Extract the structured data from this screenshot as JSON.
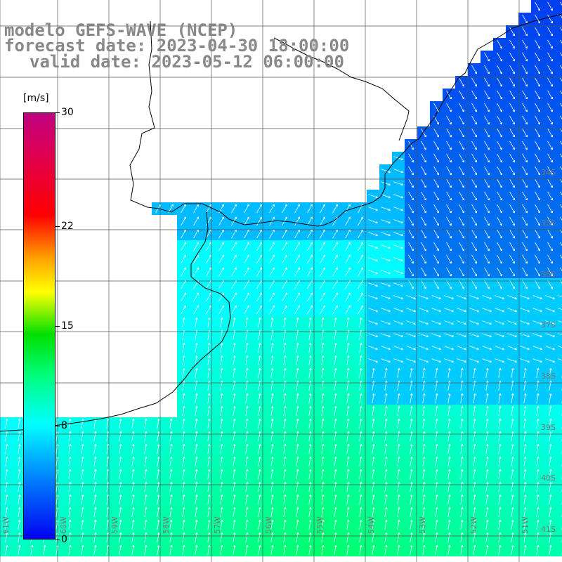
{
  "title": {
    "model": "modelo GEFS-WAVE (NCEP)",
    "forecast": "forecast date: 2023-04-30 18:00:00",
    "valid": "valid date: 2023-05-12 06:00:00"
  },
  "colorbar": {
    "unit": "[m/s]",
    "ticks": [
      {
        "label": "30",
        "value": 30
      },
      {
        "label": "22",
        "value": 22
      },
      {
        "label": "15",
        "value": 15
      },
      {
        "label": "8",
        "value": 8
      },
      {
        "label": "0",
        "value": 0
      }
    ],
    "range": [
      0,
      30
    ]
  },
  "map": {
    "lon_labels": [
      "61W",
      "60W",
      "59W",
      "58W",
      "57W",
      "56W",
      "55W",
      "54W",
      "53W",
      "52W",
      "51W"
    ],
    "lat_labels": [
      "34S",
      "35S",
      "36S",
      "37S",
      "38S",
      "39S",
      "40S",
      "41S"
    ],
    "colors": {
      "land": "#ffffff",
      "coast": "#000000",
      "grid": "#555555",
      "arrow": "#ffffff"
    }
  }
}
